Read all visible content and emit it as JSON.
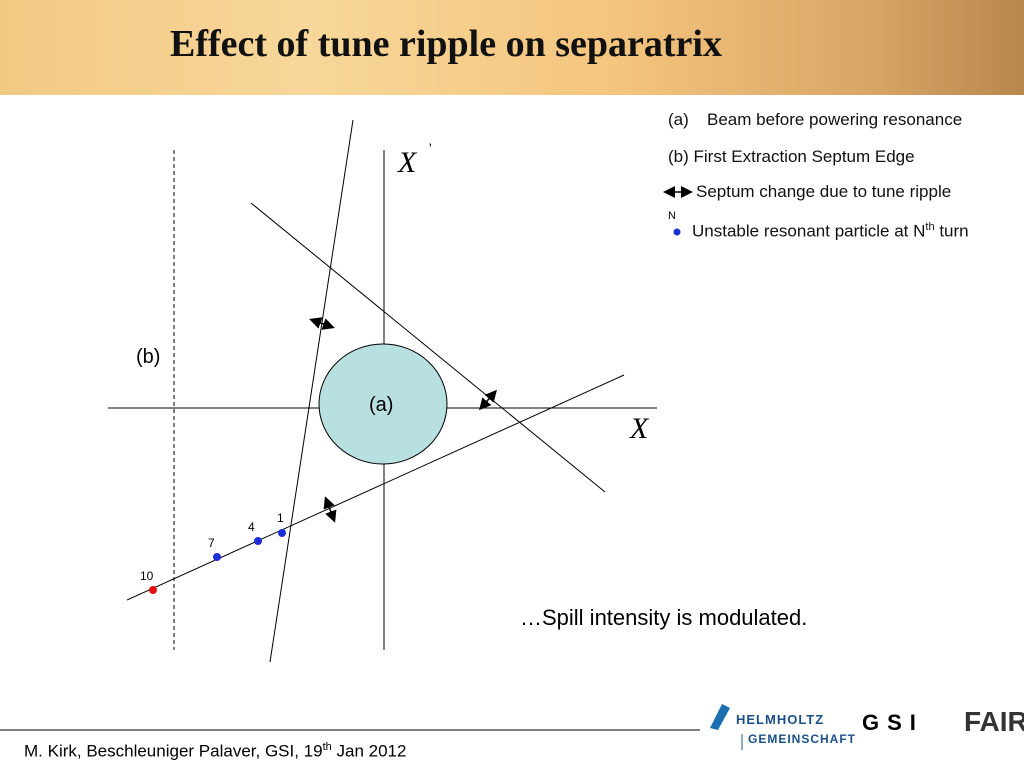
{
  "header": {
    "title": "Effect of tune ripple on separatrix"
  },
  "legend": {
    "items": [
      {
        "marker": "(a)",
        "text": "Beam before powering resonance"
      },
      {
        "text": "(b) First Extraction Septum Edge"
      },
      {
        "text": "Septum change due to tune ripple"
      },
      {
        "marker": "N",
        "text": "Unstable resonant particle at N",
        "sup": "th",
        "tail": " turn"
      }
    ]
  },
  "diagram": {
    "x_axis_label": "X",
    "y_axis_label": "X",
    "y_axis_prime": "'",
    "septum_label": "(b)",
    "beam_label": "(a)",
    "points": [
      {
        "label": "1"
      },
      {
        "label": "4"
      },
      {
        "label": "7"
      },
      {
        "label": "10"
      }
    ]
  },
  "note": "…Spill intensity is modulated.",
  "footer": {
    "text": "M. Kirk, Beschleuniger Palaver, GSI, 19",
    "sup": "th",
    "tail": " Jan 2012"
  },
  "logos": {
    "helmholtz_1": "HELMHOLTZ",
    "helmholtz_2": "GEMEINSCHAFT",
    "gsi": "GSI",
    "fair": "FAIR"
  }
}
